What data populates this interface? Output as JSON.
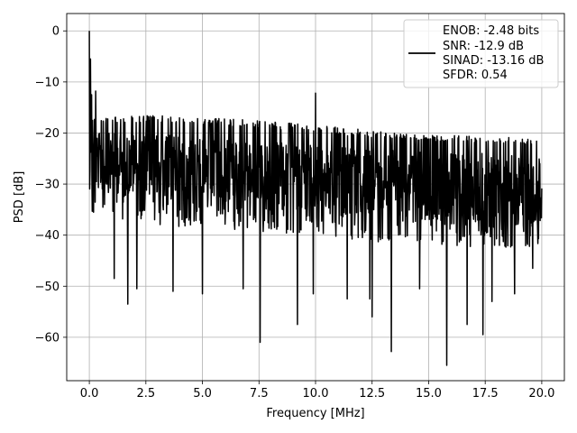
{
  "chart_data": {
    "type": "line",
    "xlabel": "Frequency [MHz]",
    "ylabel": "PSD [dB]",
    "xlim": [
      -1.0,
      21.0
    ],
    "ylim": [
      -68.5,
      3.4
    ],
    "xticks": [
      0.0,
      2.5,
      5.0,
      7.5,
      10.0,
      12.5,
      15.0,
      17.5,
      20.0
    ],
    "xtick_labels": [
      "0.0",
      "2.5",
      "5.0",
      "7.5",
      "10.0",
      "12.5",
      "15.0",
      "17.5",
      "20.0"
    ],
    "yticks": [
      0,
      -10,
      -20,
      -30,
      -40,
      -50,
      -60
    ],
    "ytick_labels": [
      "0",
      "−10",
      "−20",
      "−30",
      "−40",
      "−50",
      "−60"
    ],
    "grid": true,
    "legend_position": "top-right",
    "legend_lines": [
      "ENOB: -2.48 bits",
      "SNR: -12.9 dB",
      "SINAD: -13.16 dB",
      "SFDR: 0.54"
    ],
    "series": [
      {
        "color": "#000000",
        "x_start": 0.0,
        "x_end": 20.0,
        "peaks": [
          {
            "x": 0.0,
            "y": 0.0
          },
          {
            "x": 0.05,
            "y": -5.5
          },
          {
            "x": 0.1,
            "y": -12.5
          },
          {
            "x": 0.28,
            "y": -11.8
          },
          {
            "x": 10.0,
            "y": -12.2
          }
        ],
        "upper_envelope": [
          [
            0.0,
            -17
          ],
          [
            2.5,
            -16.5
          ],
          [
            5.0,
            -17
          ],
          [
            7.5,
            -17.5
          ],
          [
            10.0,
            -18.5
          ],
          [
            12.5,
            -19.5
          ],
          [
            15.0,
            -20.5
          ],
          [
            17.5,
            -20.5
          ],
          [
            20.0,
            -21
          ]
        ],
        "band_top": [
          [
            0.0,
            -20
          ],
          [
            2.5,
            -20
          ],
          [
            5.0,
            -21
          ],
          [
            7.5,
            -21.5
          ],
          [
            10.0,
            -22.5
          ],
          [
            12.5,
            -23
          ],
          [
            15.0,
            -23.5
          ],
          [
            17.5,
            -24
          ],
          [
            20.0,
            -24.5
          ]
        ],
        "band_bottom": [
          [
            0.0,
            -31
          ],
          [
            2.5,
            -33
          ],
          [
            5.0,
            -33.5
          ],
          [
            7.5,
            -34.5
          ],
          [
            10.0,
            -35.5
          ],
          [
            12.5,
            -36.5
          ],
          [
            15.0,
            -37
          ],
          [
            17.5,
            -37.5
          ],
          [
            20.0,
            -37.5
          ]
        ],
        "dips": [
          {
            "x": 1.1,
            "y": -48.5
          },
          {
            "x": 1.7,
            "y": -53.5
          },
          {
            "x": 2.1,
            "y": -50.5
          },
          {
            "x": 3.7,
            "y": -51.0
          },
          {
            "x": 5.0,
            "y": -51.5
          },
          {
            "x": 6.8,
            "y": -50.5
          },
          {
            "x": 7.55,
            "y": -61.0
          },
          {
            "x": 9.2,
            "y": -57.5
          },
          {
            "x": 9.9,
            "y": -51.5
          },
          {
            "x": 11.4,
            "y": -52.5
          },
          {
            "x": 12.4,
            "y": -52.5
          },
          {
            "x": 12.5,
            "y": -56.0
          },
          {
            "x": 13.35,
            "y": -62.8
          },
          {
            "x": 14.6,
            "y": -50.5
          },
          {
            "x": 15.8,
            "y": -65.5
          },
          {
            "x": 16.7,
            "y": -57.5
          },
          {
            "x": 17.4,
            "y": -59.5
          },
          {
            "x": 17.8,
            "y": -53.0
          },
          {
            "x": 18.8,
            "y": -51.5
          },
          {
            "x": 19.6,
            "y": -46.5
          }
        ]
      }
    ]
  }
}
